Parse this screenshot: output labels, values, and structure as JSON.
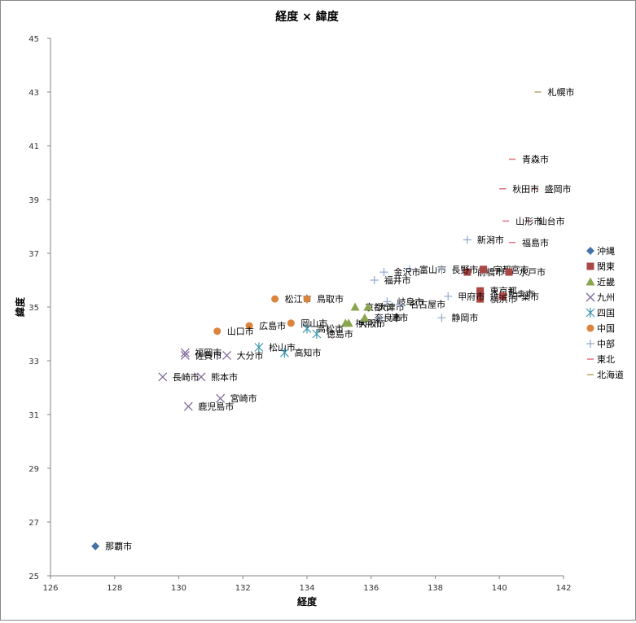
{
  "chart_data": {
    "type": "scatter",
    "title": "経度 × 緯度",
    "xlabel": "経度",
    "ylabel": "緯度",
    "xlim": [
      126,
      142
    ],
    "ylim": [
      25,
      45
    ],
    "xticks": [
      126,
      128,
      130,
      132,
      134,
      136,
      138,
      140,
      142
    ],
    "yticks": [
      25,
      27,
      29,
      31,
      33,
      35,
      37,
      39,
      41,
      43,
      45
    ],
    "grid": false,
    "legend_position": "right",
    "series": [
      {
        "name": "沖縄",
        "marker": "diamond",
        "color": "#4572a7",
        "points": [
          {
            "x": 127.4,
            "y": 26.1,
            "label": "那覇市"
          }
        ]
      },
      {
        "name": "関東",
        "marker": "square",
        "color": "#aa4643",
        "points": [
          {
            "x": 139.0,
            "y": 36.3,
            "label": "前橋市"
          },
          {
            "x": 139.5,
            "y": 36.4,
            "label": "宇都宮市"
          },
          {
            "x": 140.3,
            "y": 36.3,
            "label": "水戸市"
          },
          {
            "x": 139.4,
            "y": 35.6,
            "label": "東京都"
          },
          {
            "x": 139.4,
            "y": 35.5,
            "label": "さいたま市"
          },
          {
            "x": 140.1,
            "y": 35.4,
            "label": "千葉市"
          },
          {
            "x": 139.4,
            "y": 35.3,
            "label": "横浜市"
          }
        ]
      },
      {
        "name": "近畿",
        "marker": "triangle",
        "color": "#89a54e",
        "points": [
          {
            "x": 135.5,
            "y": 35.0,
            "label": "京都市"
          },
          {
            "x": 135.3,
            "y": 34.4,
            "label": "大阪市"
          },
          {
            "x": 135.2,
            "y": 34.4,
            "label": "神戸市"
          },
          {
            "x": 135.8,
            "y": 34.6,
            "label": "奈良市"
          },
          {
            "x": 135.9,
            "y": 35.0,
            "label": "大津市"
          }
        ]
      },
      {
        "name": "九州",
        "marker": "x",
        "color": "#80699b",
        "points": [
          {
            "x": 130.2,
            "y": 33.3,
            "label": "福岡市"
          },
          {
            "x": 130.2,
            "y": 33.2,
            "label": "佐賀市"
          },
          {
            "x": 129.5,
            "y": 32.4,
            "label": "長崎市"
          },
          {
            "x": 130.7,
            "y": 32.4,
            "label": "熊本市"
          },
          {
            "x": 131.5,
            "y": 33.2,
            "label": "大分市"
          },
          {
            "x": 131.3,
            "y": 31.6,
            "label": "宮崎市"
          },
          {
            "x": 130.3,
            "y": 31.3,
            "label": "鹿児島市"
          }
        ]
      },
      {
        "name": "四国",
        "marker": "star",
        "color": "#3d96ae",
        "points": [
          {
            "x": 132.5,
            "y": 33.5,
            "label": "松山市"
          },
          {
            "x": 133.3,
            "y": 33.3,
            "label": "高知市"
          },
          {
            "x": 134.0,
            "y": 34.2,
            "label": "高松市"
          },
          {
            "x": 134.3,
            "y": 34.0,
            "label": "徳島市"
          }
        ]
      },
      {
        "name": "中国",
        "marker": "circle",
        "color": "#db843d",
        "points": [
          {
            "x": 133.0,
            "y": 35.3,
            "label": "松江市"
          },
          {
            "x": 134.0,
            "y": 35.3,
            "label": "鳥取市"
          },
          {
            "x": 133.5,
            "y": 34.4,
            "label": "岡山市"
          },
          {
            "x": 132.2,
            "y": 34.3,
            "label": "広島市"
          },
          {
            "x": 131.2,
            "y": 34.1,
            "label": "山口市"
          }
        ]
      },
      {
        "name": "中部",
        "marker": "plus",
        "color": "#92a8cd",
        "points": [
          {
            "x": 139.0,
            "y": 37.5,
            "label": "新潟市"
          },
          {
            "x": 137.2,
            "y": 36.4,
            "label": "富山市"
          },
          {
            "x": 136.4,
            "y": 36.3,
            "label": "金沢市"
          },
          {
            "x": 136.1,
            "y": 36.0,
            "label": "福井市"
          },
          {
            "x": 138.2,
            "y": 36.4,
            "label": "長野市"
          },
          {
            "x": 138.4,
            "y": 35.4,
            "label": "甲府市"
          },
          {
            "x": 136.5,
            "y": 35.2,
            "label": "岐阜市"
          },
          {
            "x": 138.2,
            "y": 34.6,
            "label": "静岡市"
          },
          {
            "x": 136.9,
            "y": 35.1,
            "label": "名古屋市"
          },
          {
            "x": 136.3,
            "y": 34.6,
            "label": "津市"
          }
        ]
      },
      {
        "name": "東北",
        "marker": "dash",
        "color": "#e0707a",
        "points": [
          {
            "x": 140.4,
            "y": 40.5,
            "label": "青森市"
          },
          {
            "x": 141.1,
            "y": 39.4,
            "label": "盛岡市"
          },
          {
            "x": 140.1,
            "y": 39.4,
            "label": "秋田市"
          },
          {
            "x": 140.9,
            "y": 38.2,
            "label": "仙台市"
          },
          {
            "x": 140.2,
            "y": 38.2,
            "label": "山形市"
          },
          {
            "x": 140.4,
            "y": 37.4,
            "label": "福島市"
          }
        ]
      },
      {
        "name": "北海道",
        "marker": "dash",
        "color": "#b5a76e",
        "points": [
          {
            "x": 141.2,
            "y": 43.0,
            "label": "札幌市"
          }
        ]
      }
    ]
  }
}
